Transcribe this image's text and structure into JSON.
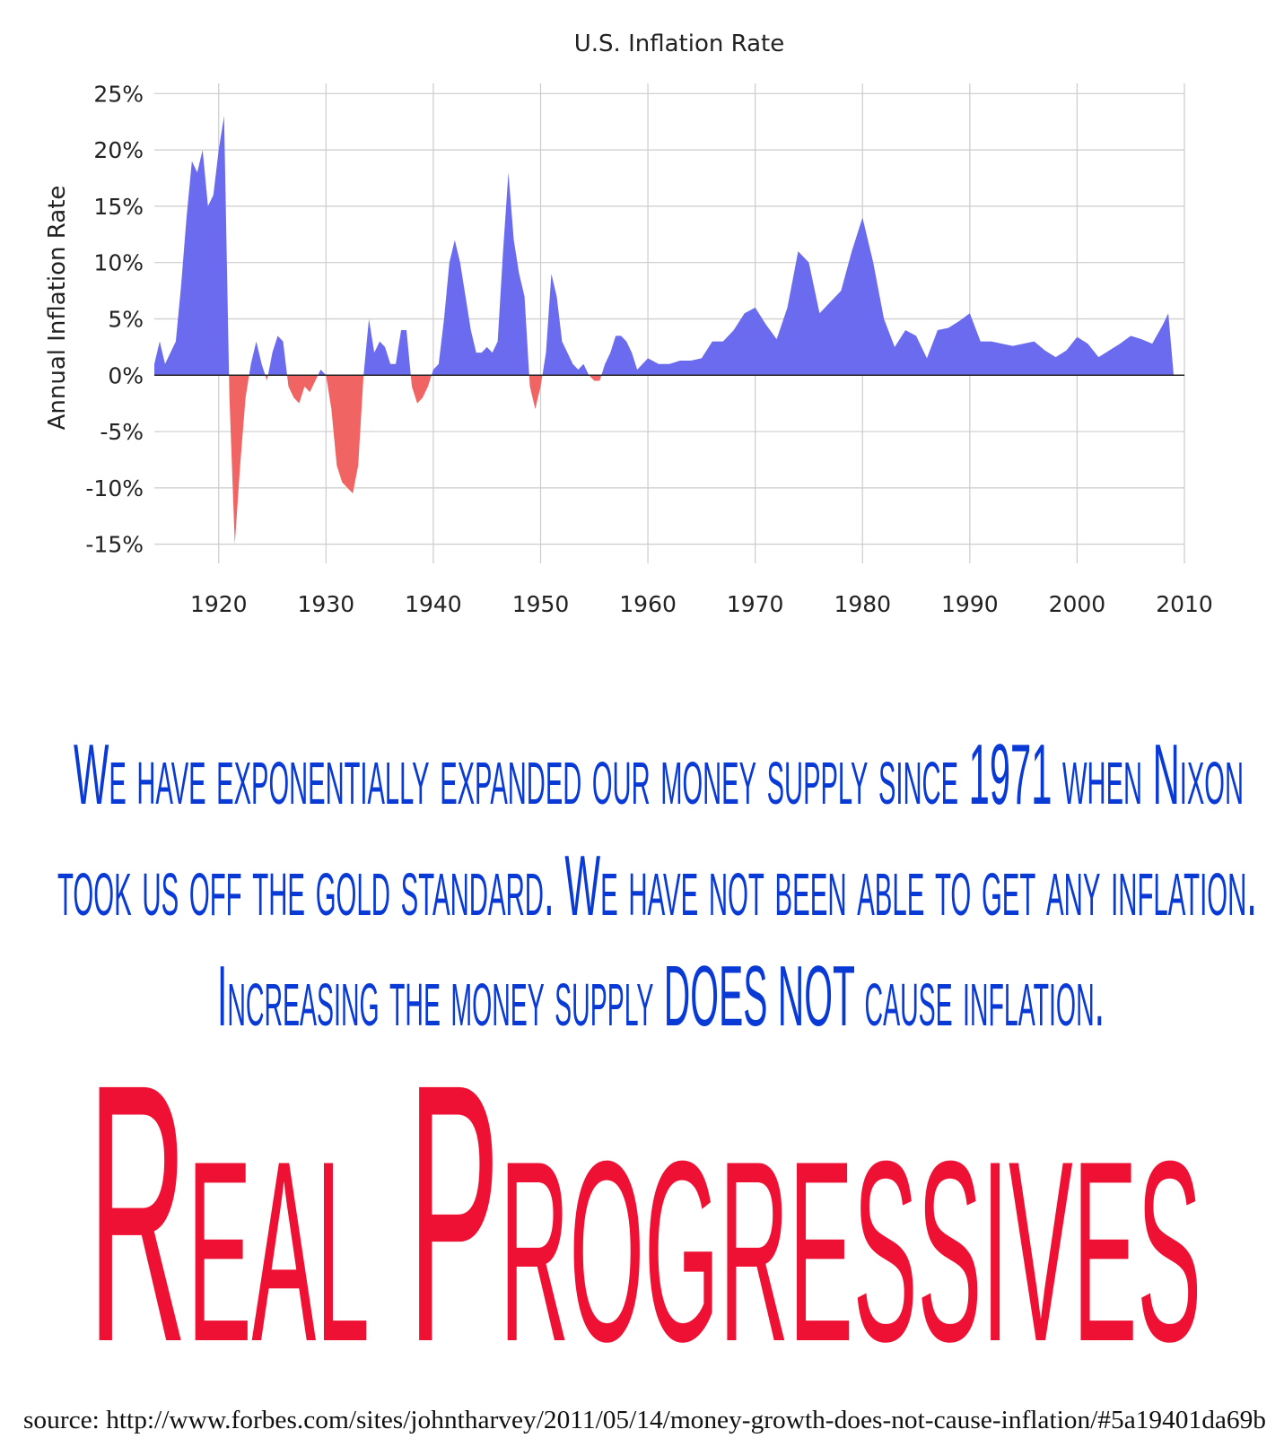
{
  "chart_data": {
    "type": "area",
    "title": "U.S. Inflation Rate",
    "y_label": "Annual Inflation Rate",
    "positive_color": "#6b6bef",
    "negative_color": "#f06464",
    "grid": true,
    "xlim": [
      1914,
      2010
    ],
    "xticks": [
      1920,
      1930,
      1940,
      1950,
      1960,
      1970,
      1980,
      1990,
      2000,
      2010
    ],
    "ylim": [
      -16.7,
      25.9
    ],
    "yticks": [
      {
        "value": -15,
        "label": "-15%"
      },
      {
        "value": -10,
        "label": "-10%"
      },
      {
        "value": -5,
        "label": "-5%"
      },
      {
        "value": 0,
        "label": "0%"
      },
      {
        "value": 5,
        "label": "5%"
      },
      {
        "value": 10,
        "label": "10%"
      },
      {
        "value": 15,
        "label": "15%"
      },
      {
        "value": 20,
        "label": "20%"
      },
      {
        "value": 25,
        "label": "25%"
      }
    ],
    "x": [
      1914,
      1914.5,
      1915,
      1915.5,
      1916,
      1916.5,
      1917,
      1917.5,
      1918,
      1918.5,
      1919,
      1919.5,
      1920,
      1920.5,
      1921,
      1921.5,
      1922,
      1922.5,
      1923,
      1923.5,
      1924,
      1924.5,
      1925,
      1925.5,
      1926,
      1926.5,
      1927,
      1927.5,
      1928,
      1928.5,
      1929,
      1929.5,
      1930,
      1930.5,
      1931,
      1931.5,
      1932,
      1932.5,
      1933,
      1933.5,
      1934,
      1934.5,
      1935,
      1935.5,
      1936,
      1936.5,
      1937,
      1937.5,
      1938,
      1938.5,
      1939,
      1939.5,
      1940,
      1940.5,
      1941,
      1941.5,
      1942,
      1942.5,
      1943,
      1943.5,
      1944,
      1944.5,
      1945,
      1945.5,
      1946,
      1946.5,
      1947,
      1947.5,
      1948,
      1948.5,
      1949,
      1949.5,
      1950,
      1950.5,
      1951,
      1951.5,
      1952,
      1952.5,
      1953,
      1953.5,
      1954,
      1954.5,
      1955,
      1955.5,
      1956,
      1956.5,
      1957,
      1957.5,
      1958,
      1958.5,
      1959,
      1959.5,
      1960,
      1961,
      1962,
      1963,
      1964,
      1965,
      1966,
      1967,
      1968,
      1969,
      1970,
      1971,
      1972,
      1973,
      1974,
      1975,
      1976,
      1977,
      1978,
      1979,
      1980,
      1981,
      1982,
      1983,
      1984,
      1985,
      1986,
      1987,
      1988,
      1989,
      1990,
      1991,
      1992,
      1993,
      1994,
      1995,
      1996,
      1997,
      1998,
      1999,
      2000,
      2001,
      2002,
      2003,
      2004,
      2005,
      2006,
      2007,
      2008,
      2008.5,
      2009
    ],
    "values": [
      1,
      3,
      1,
      2,
      3,
      8,
      14,
      19,
      18,
      20,
      15,
      16,
      20,
      23,
      -2,
      -15,
      -8,
      -2,
      1,
      3,
      1,
      -0.5,
      2,
      3.5,
      3,
      -1,
      -2,
      -2.5,
      -1,
      -1.5,
      -0.5,
      0.5,
      0,
      -3,
      -8,
      -9.5,
      -10,
      -10.5,
      -8,
      0,
      5,
      2,
      3,
      2.5,
      1,
      1,
      4,
      4,
      -1,
      -2.5,
      -2,
      -1,
      0.5,
      1,
      5,
      10,
      12,
      10,
      7,
      4,
      2,
      2,
      2.5,
      2,
      3,
      11,
      18,
      12,
      9,
      7,
      -1,
      -3,
      -1,
      2,
      9,
      7,
      3,
      2,
      1,
      0.5,
      1,
      0,
      -0.5,
      -0.5,
      1,
      2,
      3.5,
      3.5,
      3,
      2,
      0.5,
      1,
      1.5,
      1,
      1,
      1.3,
      1.3,
      1.5,
      3,
      3,
      4,
      5.5,
      6,
      4.5,
      3.2,
      6,
      11,
      10,
      5.5,
      6.5,
      7.5,
      11,
      14,
      10,
      5,
      2.5,
      4,
      3.5,
      1.5,
      4,
      4.2,
      4.8,
      5.5,
      3,
      3,
      2.8,
      2.6,
      2.8,
      3,
      2.2,
      1.6,
      2.2,
      3.4,
      2.8,
      1.6,
      2.2,
      2.8,
      3.5,
      3.2,
      2.8,
      4.5,
      5.5,
      0
    ]
  },
  "caption": [
    "We have exponentially expanded our money supply since 1971 when Nixon",
    "took us off the gold standard. We have not been able to get any inflation.",
    "Increasing the money supply DOES NOT cause inflation."
  ],
  "banner": "Real Progressives",
  "source": "source: http://www.forbes.com/sites/johntharvey/2011/05/14/money-growth-does-not-cause-inflation/#5a19401da69b"
}
